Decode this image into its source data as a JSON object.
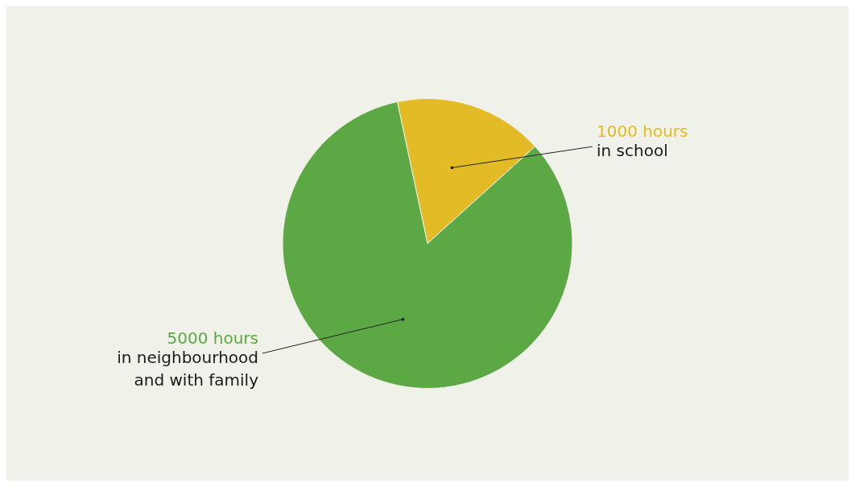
{
  "chart_data": {
    "type": "pie",
    "categories": [
      "in school",
      "in neighbourhood and with family"
    ],
    "values": [
      1000,
      5000
    ],
    "colors": [
      "#e2bb27",
      "#5ba845"
    ],
    "value_labels": [
      "1000 hours",
      "5000 hours"
    ]
  }
}
